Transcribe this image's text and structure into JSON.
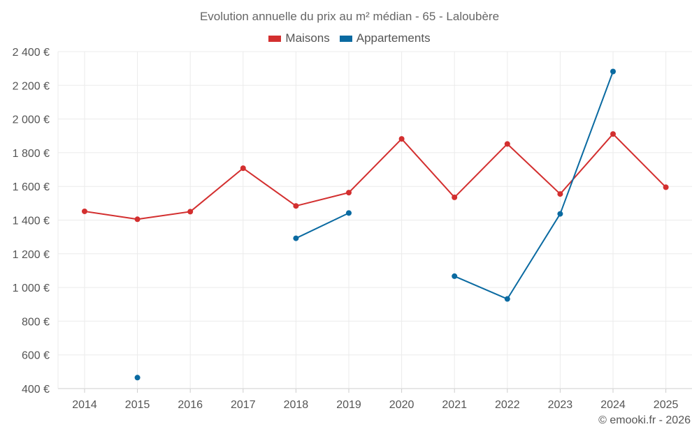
{
  "chart_data": {
    "type": "line",
    "title": "Evolution annuelle du prix au m² médian - 65 - Laloubère",
    "categories": [
      "2014",
      "2015",
      "2016",
      "2017",
      "2018",
      "2019",
      "2020",
      "2021",
      "2022",
      "2023",
      "2024",
      "2025"
    ],
    "series": [
      {
        "name": "Maisons",
        "color": "#d32f2f",
        "values": [
          1452,
          1405,
          1450,
          1708,
          1484,
          1563,
          1882,
          1535,
          1852,
          1555,
          1911,
          1595
        ]
      },
      {
        "name": "Appartements",
        "color": "#0a6aa1",
        "values": [
          null,
          465,
          null,
          null,
          1292,
          1442,
          null,
          1067,
          932,
          1437,
          2282,
          null
        ]
      }
    ],
    "y_ticks": [
      "400 €",
      "600 €",
      "800 €",
      "1 000 €",
      "1 200 €",
      "1 400 €",
      "1 600 €",
      "1 800 €",
      "2 000 €",
      "2 200 €",
      "2 400 €"
    ],
    "ylim": [
      400,
      2400
    ],
    "xlabel": "",
    "ylabel": "",
    "grid": true,
    "legend_position": "top-center"
  },
  "copyright": "© emooki.fr - 2026"
}
